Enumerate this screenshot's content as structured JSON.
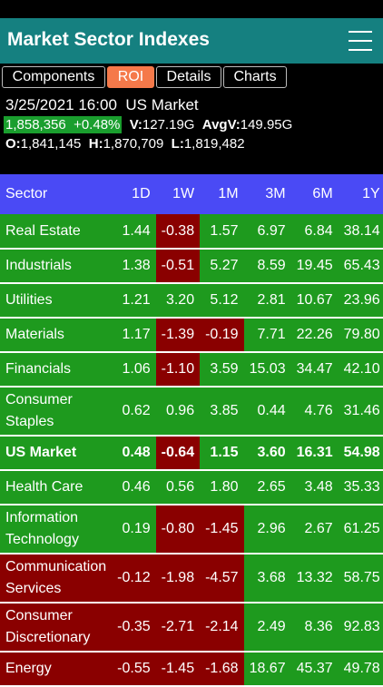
{
  "app": {
    "title": "Market Sector Indexes"
  },
  "tabs": [
    {
      "label": "Components"
    },
    {
      "label": "ROI",
      "active": true
    },
    {
      "label": "Details"
    },
    {
      "label": "Charts"
    }
  ],
  "quote": {
    "datetime": "3/25/2021 16:00",
    "market": "US Market",
    "price": "1,858,356",
    "change": "+0.48%",
    "volume_label": "V:",
    "volume": "127.19G",
    "avg_volume_label": "AvgV:",
    "avg_volume": "149.95G",
    "open_label": "O:",
    "open": "1,841,145",
    "high_label": "H:",
    "high": "1,870,709",
    "low_label": "L:",
    "low": "1,819,482"
  },
  "table": {
    "columns": [
      "Sector",
      "1D",
      "1W",
      "1M",
      "3M",
      "6M",
      "1Y"
    ],
    "rows": [
      {
        "sector": "Real Estate",
        "values": [
          "1.44",
          "-0.38",
          "1.57",
          "6.97",
          "6.84",
          "38.14"
        ],
        "bold": false
      },
      {
        "sector": "Industrials",
        "values": [
          "1.38",
          "-0.51",
          "5.27",
          "8.59",
          "19.45",
          "65.43"
        ],
        "bold": false
      },
      {
        "sector": "Utilities",
        "values": [
          "1.21",
          "3.20",
          "5.12",
          "2.81",
          "10.67",
          "23.96"
        ],
        "bold": false
      },
      {
        "sector": "Materials",
        "values": [
          "1.17",
          "-1.39",
          "-0.19",
          "7.71",
          "22.26",
          "79.80"
        ],
        "bold": false
      },
      {
        "sector": "Financials",
        "values": [
          "1.06",
          "-1.10",
          "3.59",
          "15.03",
          "34.47",
          "42.10"
        ],
        "bold": false
      },
      {
        "sector": "Consumer Staples",
        "values": [
          "0.62",
          "0.96",
          "3.85",
          "0.44",
          "4.76",
          "31.46"
        ],
        "bold": false
      },
      {
        "sector": "US Market",
        "values": [
          "0.48",
          "-0.64",
          "1.15",
          "3.60",
          "16.31",
          "54.98"
        ],
        "bold": true
      },
      {
        "sector": "Health Care",
        "values": [
          "0.46",
          "0.56",
          "1.80",
          "2.65",
          "3.48",
          "35.33"
        ],
        "bold": false
      },
      {
        "sector": "Information Technology",
        "values": [
          "0.19",
          "-0.80",
          "-1.45",
          "2.96",
          "2.67",
          "61.25"
        ],
        "bold": false
      },
      {
        "sector": "Communication Services",
        "values": [
          "-0.12",
          "-1.98",
          "-4.57",
          "3.68",
          "13.32",
          "58.75"
        ],
        "bold": false
      },
      {
        "sector": "Consumer Discretionary",
        "values": [
          "-0.35",
          "-2.71",
          "-2.14",
          "2.49",
          "8.36",
          "92.83"
        ],
        "bold": false
      },
      {
        "sector": "Energy",
        "values": [
          "-0.55",
          "-1.45",
          "-1.68",
          "18.67",
          "45.37",
          "49.78"
        ],
        "bold": false
      }
    ]
  },
  "colors": {
    "header_bg": "#158080",
    "active_tab": "#f5794a",
    "table_header": "#4a4af5",
    "positive": "#1e9a1e",
    "negative": "#8a0000"
  }
}
